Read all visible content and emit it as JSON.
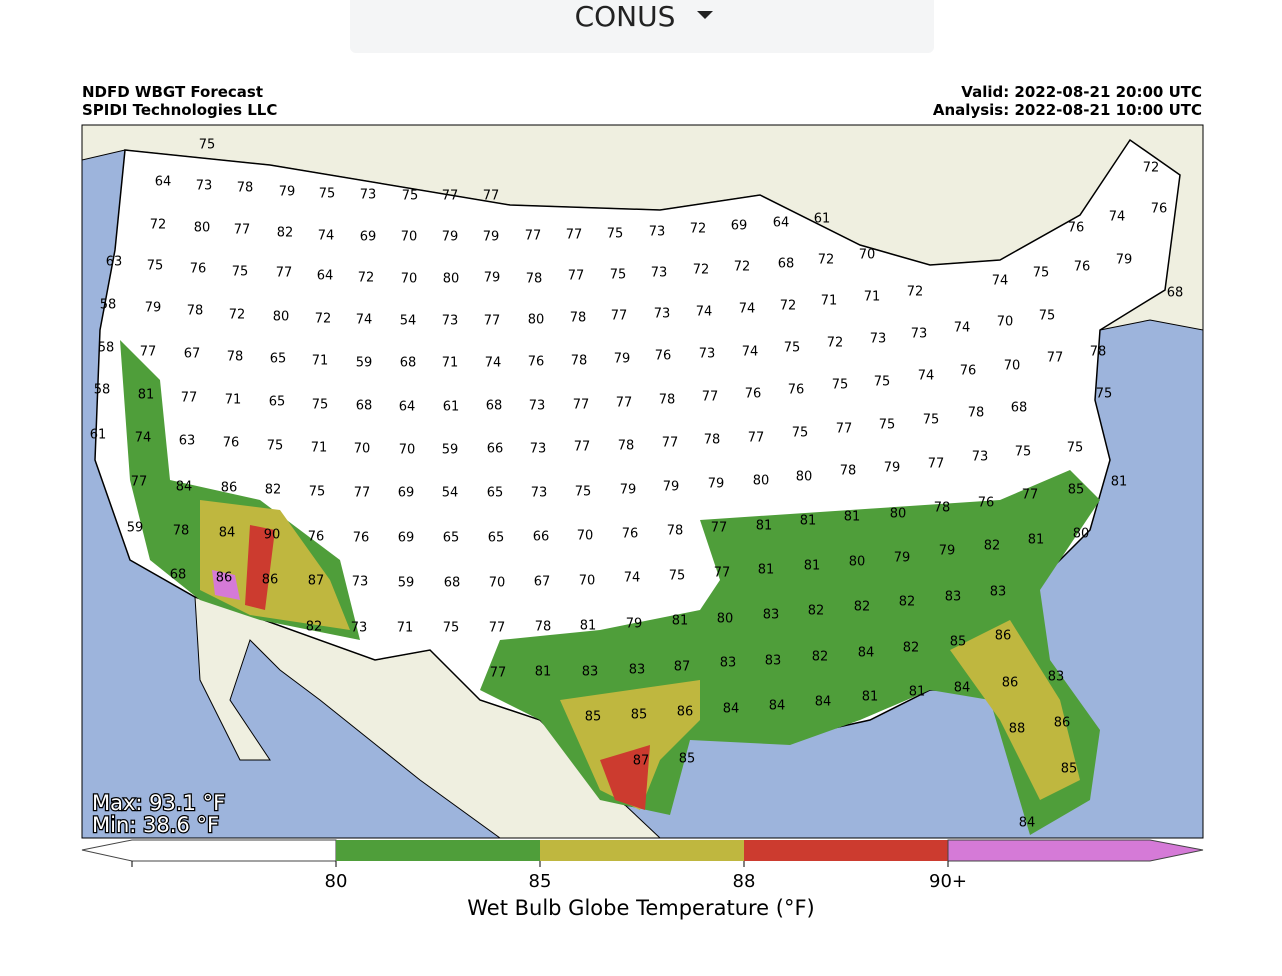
{
  "dropdown": {
    "label": "CONUS"
  },
  "header": {
    "title": "NDFD WBGT Forecast",
    "org": "SPIDI Technologies LLC",
    "valid": "Valid: 2022-08-21 20:00 UTC",
    "analysis": "Analysis: 2022-08-21 10:00 UTC"
  },
  "map": {
    "max": "Max: 93.1 °F",
    "min": "Min: 38.6 °F",
    "labels": [
      75,
      64,
      73,
      78,
      79,
      75,
      73,
      75,
      77,
      77,
      72,
      80,
      77,
      82,
      74,
      69,
      70,
      79,
      79,
      77,
      77,
      75,
      73,
      72,
      69,
      64,
      61,
      63,
      75,
      76,
      75,
      77,
      64,
      72,
      70,
      80,
      79,
      78,
      77,
      75,
      73,
      72,
      72,
      68,
      72,
      70,
      58,
      79,
      78,
      72,
      80,
      72,
      74,
      54,
      73,
      77,
      80,
      78,
      77,
      73,
      74,
      74,
      72,
      71,
      71,
      72,
      74,
      75,
      76,
      79,
      68,
      58,
      77,
      67,
      78,
      65,
      71,
      59,
      68,
      71,
      74,
      76,
      78,
      79,
      76,
      73,
      74,
      75,
      72,
      73,
      73,
      74,
      70,
      75,
      76,
      74,
      76,
      72,
      58,
      81,
      77,
      71,
      65,
      75,
      68,
      64,
      61,
      68,
      73,
      77,
      77,
      78,
      77,
      76,
      76,
      75,
      75,
      74,
      76,
      70,
      77,
      78,
      75,
      61,
      74,
      63,
      76,
      75,
      71,
      70,
      70,
      59,
      66,
      73,
      77,
      78,
      77,
      78,
      77,
      75,
      77,
      75,
      75,
      78,
      68,
      77,
      84,
      86,
      82,
      75,
      77,
      69,
      54,
      65,
      73,
      75,
      79,
      79,
      79,
      80,
      80,
      78,
      79,
      77,
      73,
      75,
      75,
      59,
      78,
      84,
      90,
      76,
      76,
      69,
      65,
      65,
      66,
      70,
      76,
      78,
      77,
      81,
      81,
      81,
      80,
      78,
      76,
      77,
      85,
      81,
      80,
      68,
      86,
      86,
      87,
      73,
      59,
      68,
      70,
      67,
      70,
      74,
      75,
      77,
      81,
      81,
      80,
      79,
      79,
      82,
      81,
      82,
      73,
      71,
      75,
      77,
      78,
      81,
      79,
      81,
      80,
      83,
      82,
      82,
      82,
      83,
      83,
      77,
      81,
      83,
      83,
      87,
      83,
      83,
      82,
      84,
      82,
      85,
      86,
      85,
      85,
      86,
      84,
      84,
      84,
      81,
      81,
      84,
      86,
      83,
      87,
      85,
      88,
      86,
      85,
      84
    ]
  },
  "colorbar": {
    "ticks": [
      "80",
      "85",
      "88",
      "90+"
    ],
    "title": "Wet Bulb Globe Temperature (°F)"
  }
}
